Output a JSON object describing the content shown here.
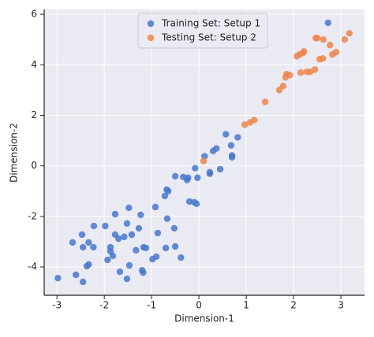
{
  "chart_data": {
    "type": "scatter",
    "x_label": "Dimension-1",
    "y_label": "Dimension-2",
    "xlim": [
      -3.27,
      3.5
    ],
    "ylim": [
      -5.12,
      6.19
    ],
    "xticks": [
      -3,
      -2,
      -1,
      0,
      1,
      2,
      3
    ],
    "yticks": [
      -4,
      -2,
      0,
      2,
      4,
      6
    ],
    "grid": true,
    "legend": "upper center",
    "series": [
      {
        "name": "Training Set: Setup 1",
        "color": "#4878d0",
        "x": [
          -2.98,
          -2.6,
          -2.45,
          -2.37,
          -2.33,
          -2.67,
          -2.47,
          -2.45,
          -2.33,
          -2.23,
          -2.22,
          -1.98,
          -1.93,
          -1.87,
          -1.82,
          -1.87,
          -1.77,
          -1.77,
          -1.7,
          -1.67,
          -1.58,
          -1.52,
          -1.48,
          -1.52,
          -1.47,
          -1.42,
          -1.33,
          -1.27,
          -1.23,
          -1.2,
          -1.18,
          -1.17,
          -1.12,
          -0.98,
          -0.92,
          -0.9,
          -0.87,
          -0.72,
          -0.68,
          -0.65,
          -0.67,
          -0.7,
          -0.52,
          -0.5,
          -0.5,
          -0.38,
          -0.33,
          -0.25,
          -0.23,
          -0.2,
          -0.1,
          -0.05,
          -0.08,
          -0.03,
          0.12,
          0.23,
          0.23,
          0.3,
          0.37,
          0.45,
          0.57,
          0.68,
          0.7,
          0.7,
          0.82,
          2.73
        ],
        "y": [
          -4.44,
          -4.31,
          -4.59,
          -3.97,
          -3.9,
          -3.03,
          -2.72,
          -3.22,
          -3.03,
          -3.22,
          -2.38,
          -2.38,
          -3.72,
          -3.38,
          -3.56,
          -3.22,
          -1.91,
          -2.72,
          -2.88,
          -4.19,
          -2.81,
          -2.28,
          -1.66,
          -4.47,
          -3.94,
          -2.72,
          -3.34,
          -2.47,
          -1.94,
          -4.13,
          -4.22,
          -3.22,
          -3.25,
          -3.69,
          -1.63,
          -3.59,
          -2.66,
          -1.19,
          -0.94,
          -1.0,
          -2.09,
          -3.25,
          -2.47,
          -3.19,
          -0.41,
          -3.63,
          -0.44,
          -0.56,
          -0.47,
          -1.41,
          -1.44,
          -1.5,
          -0.09,
          -0.47,
          0.38,
          -0.31,
          -0.25,
          0.59,
          0.69,
          -0.13,
          1.25,
          0.81,
          0.41,
          0.34,
          1.13,
          5.66
        ]
      },
      {
        "name": "Testing Set: Setup 2",
        "color": "#ee854a",
        "x": [
          0.1,
          0.97,
          1.08,
          1.17,
          1.4,
          1.7,
          1.78,
          1.83,
          1.85,
          1.92,
          2.07,
          2.13,
          2.15,
          2.2,
          2.22,
          2.28,
          2.35,
          2.45,
          2.47,
          2.5,
          2.55,
          2.62,
          2.63,
          2.77,
          2.82,
          2.9,
          3.08,
          3.18
        ],
        "y": [
          0.19,
          1.63,
          1.72,
          1.81,
          2.53,
          3.0,
          3.16,
          3.5,
          3.63,
          3.59,
          4.34,
          4.41,
          3.69,
          4.47,
          4.53,
          3.72,
          3.72,
          3.81,
          5.06,
          5.06,
          4.22,
          4.25,
          5.0,
          4.78,
          4.41,
          4.5,
          5.0,
          5.25
        ]
      }
    ]
  }
}
